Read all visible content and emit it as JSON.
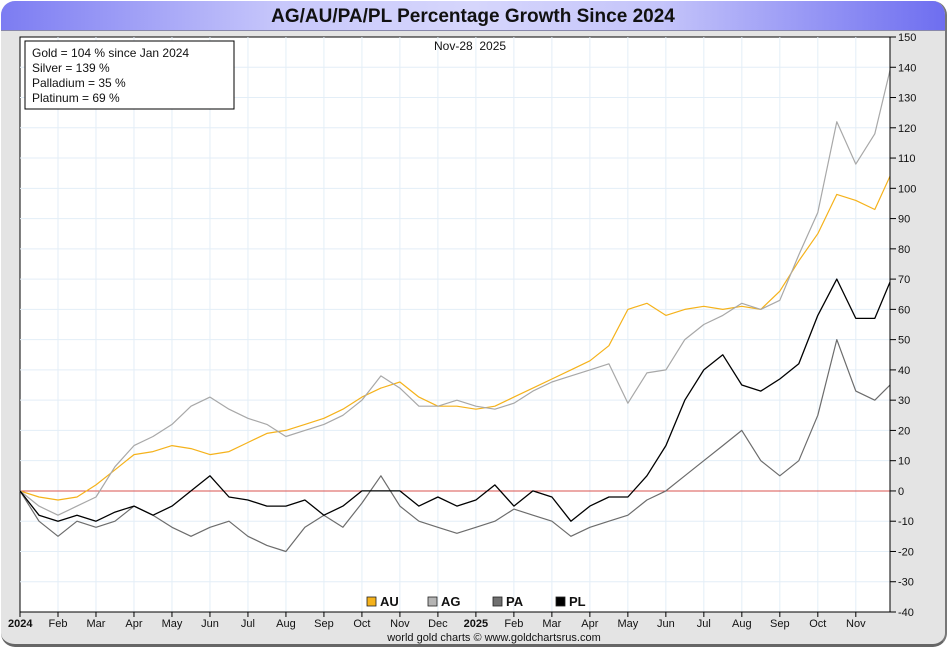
{
  "chart_data": {
    "type": "line",
    "title": "AG/AU/PA/PL Percentage Growth Since 2024",
    "date_label": "Nov-28  2025",
    "stats": [
      "Gold = 104 % since Jan 2024",
      "Silver = 139 %",
      "Palladium = 35 %",
      "Platinum = 69 %"
    ],
    "xlabel": "",
    "ylabel": "",
    "ylim": [
      -40,
      150
    ],
    "yticks": [
      150,
      140,
      130,
      120,
      110,
      100,
      90,
      80,
      70,
      60,
      50,
      40,
      30,
      20,
      10,
      0,
      -10,
      -20,
      -30,
      -40
    ],
    "xlim": [
      0,
      22.9
    ],
    "x_tick_labels": [
      {
        "m": 0,
        "label": "2024",
        "bold": true
      },
      {
        "m": 1,
        "label": "Feb"
      },
      {
        "m": 2,
        "label": "Mar"
      },
      {
        "m": 3,
        "label": "Apr"
      },
      {
        "m": 4,
        "label": "May"
      },
      {
        "m": 5,
        "label": "Jun"
      },
      {
        "m": 6,
        "label": "Jul"
      },
      {
        "m": 7,
        "label": "Aug"
      },
      {
        "m": 8,
        "label": "Sep"
      },
      {
        "m": 9,
        "label": "Oct"
      },
      {
        "m": 10,
        "label": "Nov"
      },
      {
        "m": 11,
        "label": "Dec"
      },
      {
        "m": 12,
        "label": "2025",
        "bold": true
      },
      {
        "m": 13,
        "label": "Feb"
      },
      {
        "m": 14,
        "label": "Mar"
      },
      {
        "m": 15,
        "label": "Apr"
      },
      {
        "m": 16,
        "label": "May"
      },
      {
        "m": 17,
        "label": "Jun"
      },
      {
        "m": 18,
        "label": "Jul"
      },
      {
        "m": 19,
        "label": "Aug"
      },
      {
        "m": 20,
        "label": "Sep"
      },
      {
        "m": 21,
        "label": "Oct"
      },
      {
        "m": 22,
        "label": "Nov"
      }
    ],
    "x": [
      0,
      0.5,
      1,
      1.5,
      2,
      2.5,
      3,
      3.5,
      4,
      4.5,
      5,
      5.5,
      6,
      6.5,
      7,
      7.5,
      8,
      8.5,
      9,
      9.5,
      10,
      10.5,
      11,
      11.5,
      12,
      12.5,
      13,
      13.5,
      14,
      14.5,
      15,
      15.5,
      16,
      16.5,
      17,
      17.5,
      18,
      18.5,
      19,
      19.5,
      20,
      20.5,
      21,
      21.5,
      22,
      22.5,
      22.9
    ],
    "series": [
      {
        "name": "AU",
        "color": "#f5b21b",
        "width": 1.2,
        "values": [
          0,
          -2,
          -3,
          -2,
          2,
          7,
          12,
          13,
          15,
          14,
          12,
          13,
          16,
          19,
          20,
          22,
          24,
          27,
          31,
          34,
          36,
          31,
          28,
          28,
          27,
          28,
          31,
          34,
          37,
          40,
          43,
          48,
          60,
          62,
          58,
          60,
          61,
          60,
          61,
          60,
          66,
          76,
          85,
          98,
          96,
          93,
          104
        ]
      },
      {
        "name": "AG",
        "color": "#a8a8a8",
        "width": 1.2,
        "values": [
          0,
          -5,
          -8,
          -5,
          -2,
          8,
          15,
          18,
          22,
          28,
          31,
          27,
          24,
          22,
          18,
          20,
          22,
          25,
          30,
          38,
          34,
          28,
          28,
          30,
          28,
          27,
          29,
          33,
          36,
          38,
          40,
          42,
          29,
          39,
          40,
          50,
          55,
          58,
          62,
          60,
          63,
          78,
          92,
          122,
          108,
          118,
          139
        ]
      },
      {
        "name": "PA",
        "color": "#6c6c6c",
        "width": 1.2,
        "values": [
          0,
          -10,
          -15,
          -10,
          -12,
          -10,
          -5,
          -8,
          -12,
          -15,
          -12,
          -10,
          -15,
          -18,
          -20,
          -12,
          -8,
          -12,
          -4,
          5,
          -5,
          -10,
          -12,
          -14,
          -12,
          -10,
          -6,
          -8,
          -10,
          -15,
          -12,
          -10,
          -8,
          -3,
          0,
          5,
          10,
          15,
          20,
          10,
          5,
          10,
          25,
          50,
          33,
          30,
          35
        ]
      },
      {
        "name": "PL",
        "color": "#000000",
        "width": 1.3,
        "values": [
          0,
          -8,
          -10,
          -8,
          -10,
          -7,
          -5,
          -8,
          -5,
          0,
          5,
          -2,
          -3,
          -5,
          -5,
          -3,
          -8,
          -5,
          0,
          0,
          0,
          -5,
          -2,
          -5,
          -3,
          2,
          -5,
          0,
          -2,
          -10,
          -5,
          -2,
          -2,
          5,
          15,
          30,
          40,
          45,
          35,
          33,
          37,
          42,
          58,
          70,
          57,
          57,
          69
        ]
      }
    ],
    "legend": [
      {
        "label": "AU",
        "color": "#f5b21b"
      },
      {
        "label": "AG",
        "color": "#b4b4b4"
      },
      {
        "label": "PA",
        "color": "#707070"
      },
      {
        "label": "PL",
        "color": "#000000"
      }
    ],
    "legend_position": "bottom-center",
    "grid": true,
    "zero_line_color": "#d9534f",
    "footer": "world gold charts © www.goldchartsrus.com"
  }
}
